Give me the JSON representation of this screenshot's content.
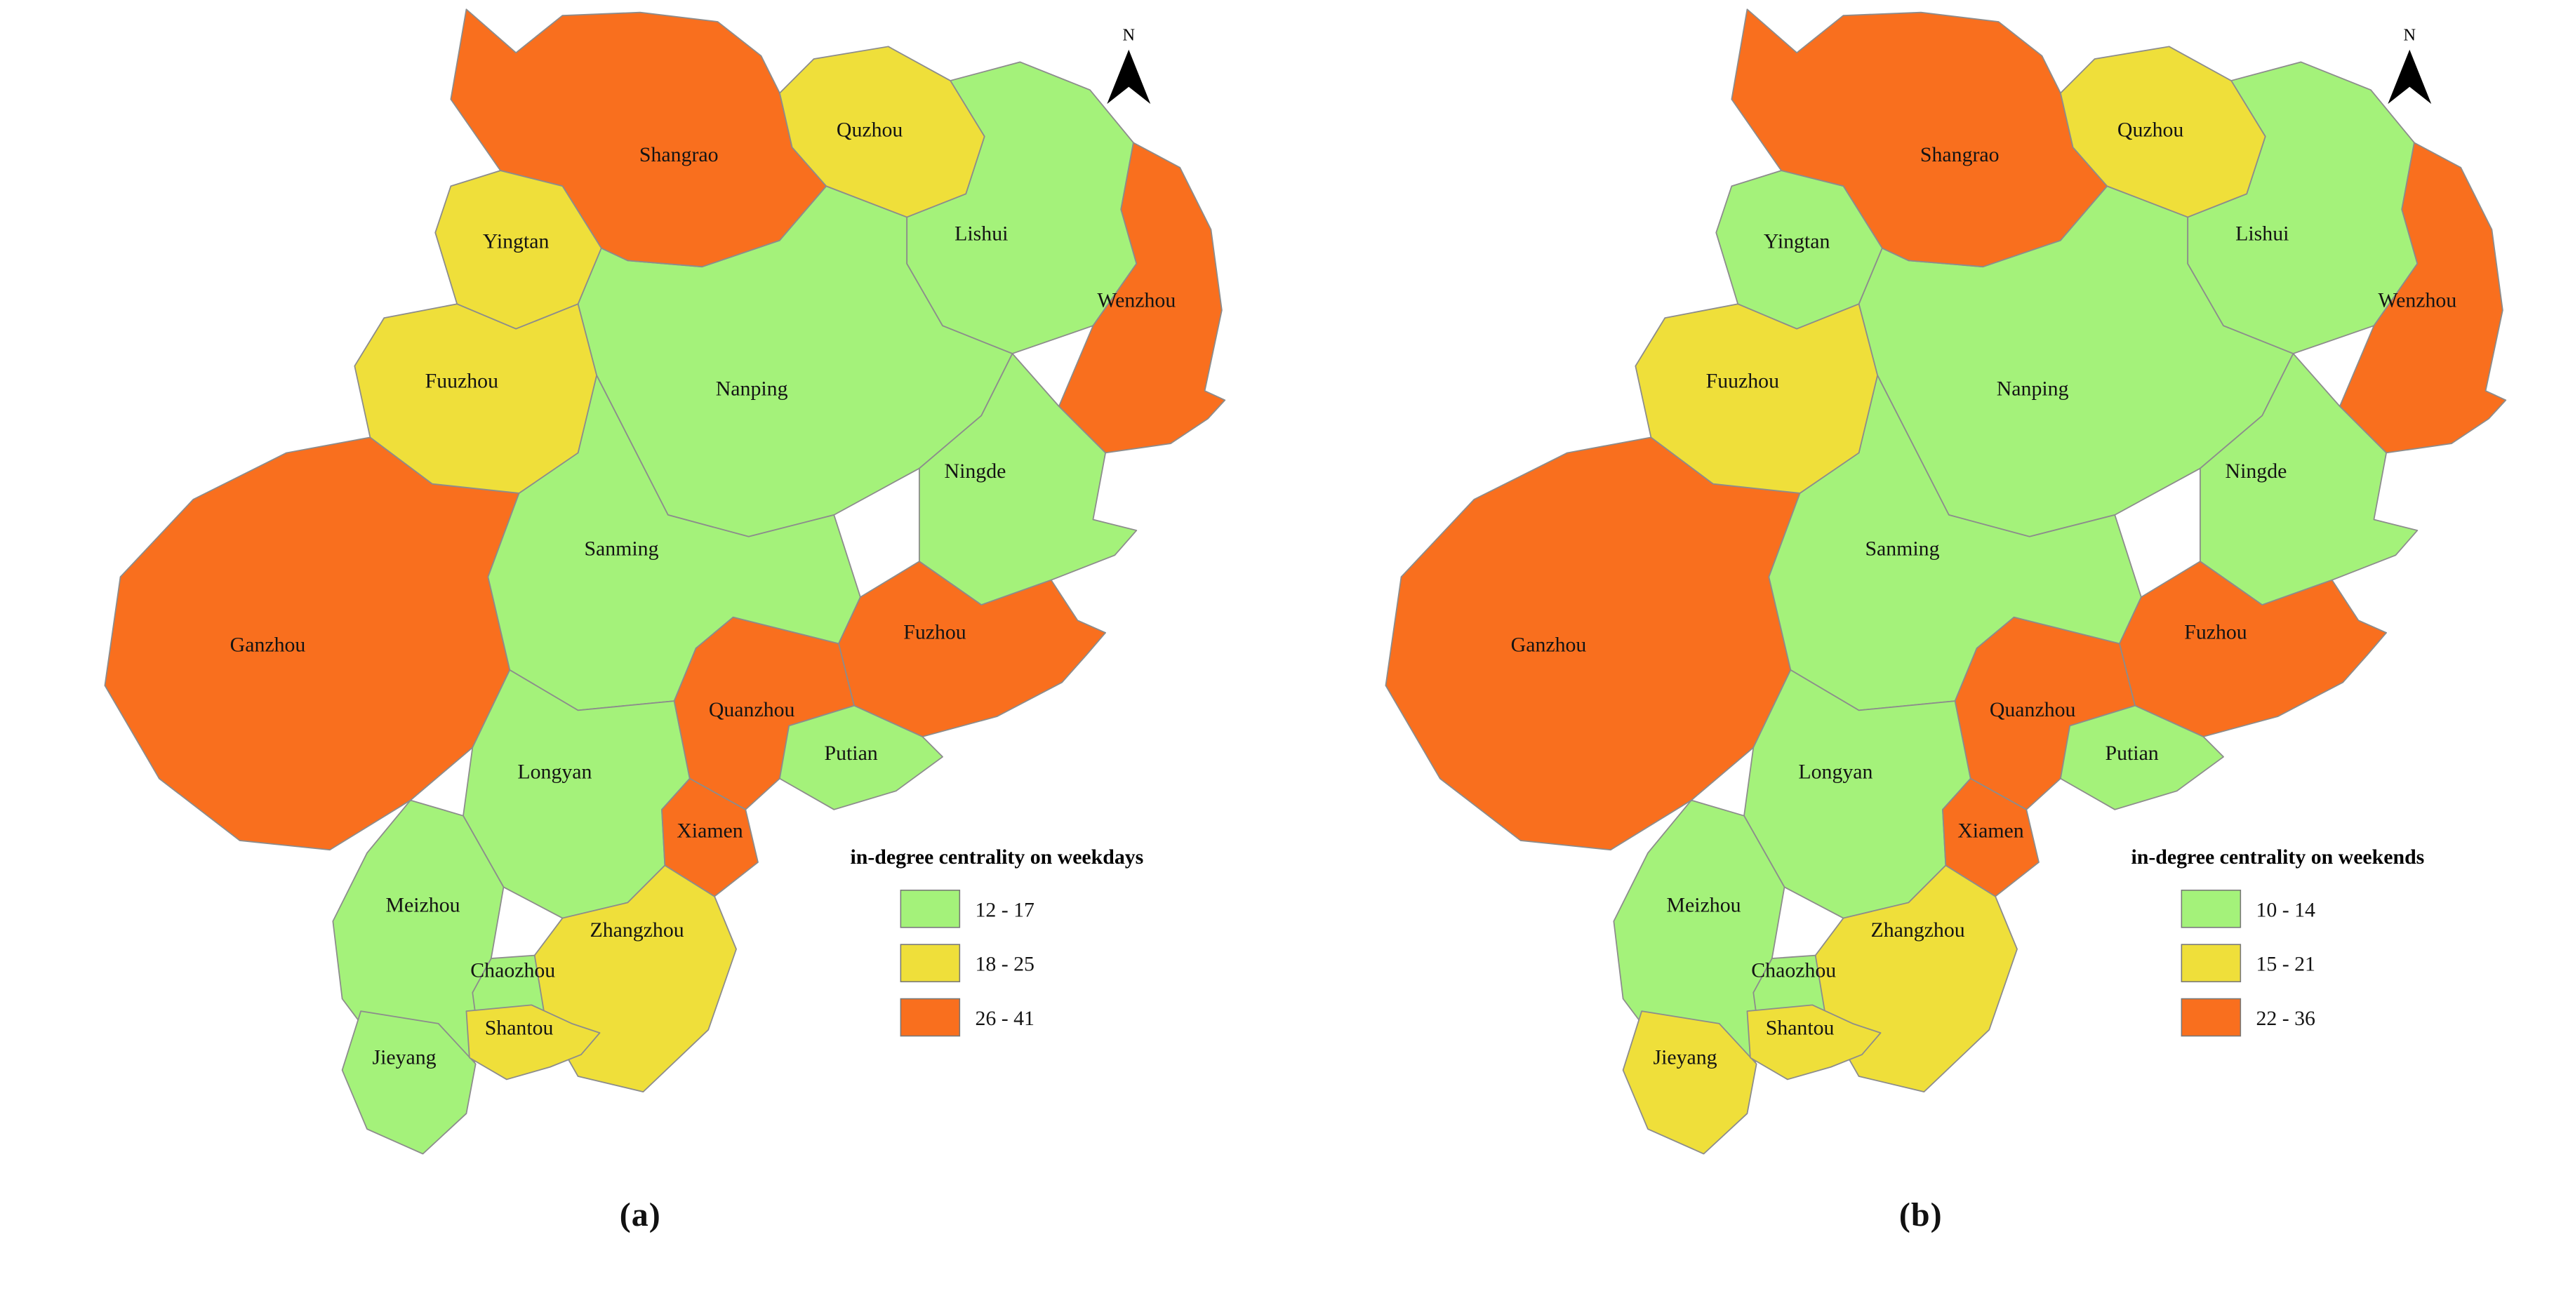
{
  "figure": {
    "background": "#ffffff",
    "palette": {
      "green": "#a4f27a",
      "yellow": "#efdf3a",
      "orange": "#f96f1e"
    },
    "border_color": "#8c8c8c",
    "regions": [
      {
        "id": "shangrao",
        "name": "Shangrao"
      },
      {
        "id": "quzhou",
        "name": "Quzhou"
      },
      {
        "id": "lishui",
        "name": "Lishui"
      },
      {
        "id": "wenzhou",
        "name": "Wenzhou"
      },
      {
        "id": "yingtan",
        "name": "Yingtan"
      },
      {
        "id": "fuuzhou",
        "name": "Fuuzhou"
      },
      {
        "id": "nanping",
        "name": "Nanping"
      },
      {
        "id": "ningde",
        "name": "Ningde"
      },
      {
        "id": "ganzhou",
        "name": "Ganzhou"
      },
      {
        "id": "sanming",
        "name": "Sanming"
      },
      {
        "id": "fuzhou",
        "name": "Fuzhou"
      },
      {
        "id": "putian",
        "name": "Putian"
      },
      {
        "id": "longyan",
        "name": "Longyan"
      },
      {
        "id": "quanzhou",
        "name": "Quanzhou"
      },
      {
        "id": "xiamen",
        "name": "Xiamen"
      },
      {
        "id": "meizhou",
        "name": "Meizhou"
      },
      {
        "id": "zhangzhou",
        "name": "Zhangzhou"
      },
      {
        "id": "chaozhou",
        "name": "Chaozhou"
      },
      {
        "id": "jieyang",
        "name": "Jieyang"
      },
      {
        "id": "shantou",
        "name": "Shantou"
      }
    ],
    "panels": [
      {
        "caption": "(a)",
        "north_label": "N",
        "legend": {
          "title": "in-degree centrality on weekdays",
          "items": [
            {
              "class": "green",
              "label": "12 - 17"
            },
            {
              "class": "yellow",
              "label": "18 - 25"
            },
            {
              "class": "orange",
              "label": "26 - 41"
            }
          ]
        },
        "region_classes": {
          "shangrao": "orange",
          "quzhou": "yellow",
          "lishui": "green",
          "wenzhou": "orange",
          "yingtan": "yellow",
          "fuuzhou": "yellow",
          "nanping": "green",
          "ningde": "green",
          "ganzhou": "orange",
          "sanming": "green",
          "fuzhou": "orange",
          "putian": "green",
          "longyan": "green",
          "quanzhou": "orange",
          "xiamen": "orange",
          "meizhou": "green",
          "zhangzhou": "yellow",
          "chaozhou": "green",
          "jieyang": "green",
          "shantou": "yellow"
        }
      },
      {
        "caption": "(b)",
        "north_label": "N",
        "legend": {
          "title": "in-degree centrality on weekends",
          "items": [
            {
              "class": "green",
              "label": "10 - 14"
            },
            {
              "class": "yellow",
              "label": "15 - 21"
            },
            {
              "class": "orange",
              "label": "22 - 36"
            }
          ]
        },
        "region_classes": {
          "shangrao": "orange",
          "quzhou": "yellow",
          "lishui": "green",
          "wenzhou": "orange",
          "yingtan": "green",
          "fuuzhou": "yellow",
          "nanping": "green",
          "ningde": "green",
          "ganzhou": "orange",
          "sanming": "green",
          "fuzhou": "orange",
          "putian": "green",
          "longyan": "green",
          "quanzhou": "orange",
          "xiamen": "orange",
          "meizhou": "green",
          "zhangzhou": "yellow",
          "chaozhou": "green",
          "jieyang": "yellow",
          "shantou": "yellow"
        }
      }
    ]
  }
}
